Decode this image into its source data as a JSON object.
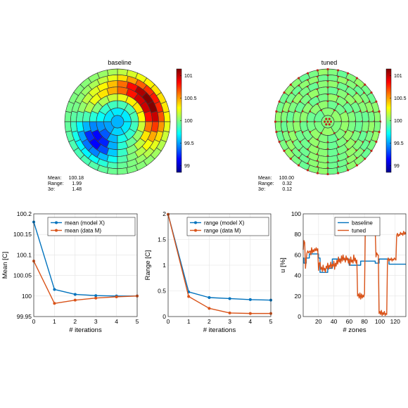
{
  "chart_data": [
    {
      "type": "heatmap",
      "title": "baseline",
      "colorbar": {
        "ticks": [
          "101",
          "100.5",
          "100",
          "99.5",
          "99"
        ],
        "min": 98.85,
        "max": 101.15
      },
      "stats": [
        {
          "label": "Mean:",
          "value": "100.18"
        },
        {
          "label": "Range:",
          "value": "1.99"
        },
        {
          "label": "3σ:",
          "value": "1.48"
        }
      ],
      "field": {
        "base": 100.0,
        "hot_angle_deg": 30,
        "hot_amplitude": 1.0,
        "cold_angle_deg": 220,
        "cold_amplitude": 0.9
      }
    },
    {
      "type": "heatmap",
      "title": "tuned",
      "colorbar": {
        "ticks": [
          "101",
          "100.5",
          "100",
          "99.5",
          "99"
        ],
        "min": 98.85,
        "max": 101.15
      },
      "stats": [
        {
          "label": "Mean:",
          "value": "100.00"
        },
        {
          "label": "Range:",
          "value": "0.32"
        },
        {
          "label": "3σ:",
          "value": "0.12"
        }
      ],
      "field": {
        "base": 100.0
      }
    },
    {
      "type": "line",
      "xlabel": "# iterations",
      "ylabel": "Mean [C]",
      "xlim": [
        0,
        5
      ],
      "ylim": [
        99.95,
        100.2
      ],
      "xticks": [
        0,
        1,
        2,
        3,
        4,
        5
      ],
      "yticks": [
        99.95,
        100,
        100.05,
        100.1,
        100.15,
        100.2
      ],
      "ytick_labels": [
        "99.95",
        "100",
        "100.05",
        "100.1",
        "100.15",
        "100.2"
      ],
      "grid": true,
      "legend": "top-right",
      "x": [
        0,
        1,
        2,
        3,
        4,
        5
      ],
      "series": [
        {
          "name": "mean (model X)",
          "color": "#0072bd",
          "values": [
            100.18,
            100.016,
            100.004,
            100.001,
            100.0,
            100.0
          ]
        },
        {
          "name": "mean (data M)",
          "color": "#d95319",
          "values": [
            100.085,
            99.982,
            99.99,
            99.995,
            99.998,
            100.0
          ]
        }
      ]
    },
    {
      "type": "line",
      "xlabel": "# iterations",
      "ylabel": "Range [C]",
      "xlim": [
        0,
        5
      ],
      "ylim": [
        0,
        2
      ],
      "xticks": [
        0,
        1,
        2,
        3,
        4,
        5
      ],
      "yticks": [
        0,
        0.5,
        1,
        1.5,
        2
      ],
      "ytick_labels": [
        "0",
        "0.5",
        "1",
        "1.5",
        "2"
      ],
      "grid": true,
      "legend": "top-right",
      "x": [
        0,
        1,
        2,
        3,
        4,
        5
      ],
      "series": [
        {
          "name": "range (model X)",
          "color": "#0072bd",
          "values": [
            1.99,
            0.48,
            0.37,
            0.35,
            0.33,
            0.32
          ]
        },
        {
          "name": "range (data M)",
          "color": "#d95319",
          "values": [
            1.99,
            0.39,
            0.16,
            0.07,
            0.06,
            0.06
          ]
        }
      ]
    },
    {
      "type": "line",
      "xlabel": "# zones",
      "ylabel": "u [%]",
      "xlim": [
        0,
        134
      ],
      "ylim": [
        0,
        100
      ],
      "xticks": [
        20,
        40,
        60,
        80,
        100,
        120
      ],
      "yticks": [
        0,
        20,
        40,
        60,
        80,
        100
      ],
      "ytick_labels": [
        "0",
        "20",
        "40",
        "60",
        "80",
        "100"
      ],
      "grid": true,
      "legend": "top-right",
      "series": [
        {
          "name": "baseline",
          "color": "#0072bd",
          "points": [
            [
              0,
              57
            ],
            [
              1,
              57
            ],
            [
              1,
              52
            ],
            [
              4,
              52
            ],
            [
              4,
              57
            ],
            [
              8,
              57
            ],
            [
              8,
              61
            ],
            [
              20,
              61
            ],
            [
              20,
              57
            ],
            [
              22,
              57
            ],
            [
              22,
              43
            ],
            [
              32,
              43
            ],
            [
              32,
              47
            ],
            [
              38,
              47
            ],
            [
              38,
              56
            ],
            [
              60,
              56
            ],
            [
              60,
              50
            ],
            [
              75,
              50
            ],
            [
              75,
              54
            ],
            [
              94,
              54
            ],
            [
              94,
              52
            ],
            [
              99,
              52
            ],
            [
              99,
              56
            ],
            [
              112,
              56
            ],
            [
              112,
              51
            ],
            [
              134,
              51
            ]
          ]
        },
        {
          "name": "tuned",
          "color": "#d95319",
          "points": [
            [
              0,
              65
            ],
            [
              1,
              74
            ],
            [
              2,
              72
            ],
            [
              3,
              47
            ],
            [
              4,
              56
            ],
            [
              5,
              62
            ],
            [
              6,
              64
            ],
            [
              7,
              62
            ],
            [
              8,
              63
            ],
            [
              9,
              64
            ],
            [
              10,
              60
            ],
            [
              11,
              67
            ],
            [
              12,
              62
            ],
            [
              13,
              65
            ],
            [
              14,
              63
            ],
            [
              15,
              66
            ],
            [
              16,
              64
            ],
            [
              17,
              67
            ],
            [
              18,
              64
            ],
            [
              19,
              66
            ],
            [
              20,
              45
            ],
            [
              21,
              52
            ],
            [
              22,
              53
            ],
            [
              23,
              46
            ],
            [
              24,
              48
            ],
            [
              25,
              44
            ],
            [
              26,
              50
            ],
            [
              27,
              45
            ],
            [
              28,
              47
            ],
            [
              29,
              43
            ],
            [
              30,
              49
            ],
            [
              31,
              47
            ],
            [
              32,
              52
            ],
            [
              33,
              46
            ],
            [
              34,
              50
            ],
            [
              35,
              48
            ],
            [
              36,
              53
            ],
            [
              37,
              47
            ],
            [
              38,
              51
            ],
            [
              39,
              49
            ],
            [
              40,
              54
            ],
            [
              41,
              46
            ],
            [
              42,
              52
            ],
            [
              43,
              49
            ],
            [
              44,
              55
            ],
            [
              45,
              51
            ],
            [
              46,
              58
            ],
            [
              47,
              53
            ],
            [
              48,
              56
            ],
            [
              49,
              52
            ],
            [
              50,
              59
            ],
            [
              51,
              54
            ],
            [
              52,
              60
            ],
            [
              53,
              55
            ],
            [
              54,
              57
            ],
            [
              55,
              53
            ],
            [
              56,
              59
            ],
            [
              57,
              55
            ],
            [
              58,
              57
            ],
            [
              59,
              52
            ],
            [
              60,
              56
            ],
            [
              61,
              50
            ],
            [
              62,
              58
            ],
            [
              63,
              53
            ],
            [
              64,
              55
            ],
            [
              65,
              52
            ],
            [
              66,
              60
            ],
            [
              67,
              54
            ],
            [
              68,
              57
            ],
            [
              69,
              52
            ],
            [
              70,
              55
            ],
            [
              71,
              20
            ],
            [
              72,
              22
            ],
            [
              73,
              18
            ],
            [
              74,
              23
            ],
            [
              75,
              17
            ],
            [
              76,
              22
            ],
            [
              77,
              18
            ],
            [
              78,
              21
            ],
            [
              79,
              19
            ],
            [
              80,
              22
            ],
            [
              81,
              82
            ],
            [
              82,
              84
            ],
            [
              83,
              82
            ],
            [
              84,
              83
            ],
            [
              85,
              82
            ],
            [
              86,
              84
            ],
            [
              87,
              82
            ],
            [
              88,
              84
            ],
            [
              89,
              82
            ],
            [
              90,
              84
            ],
            [
              91,
              83
            ],
            [
              92,
              84
            ],
            [
              93,
              82
            ],
            [
              94,
              83
            ],
            [
              95,
              58
            ],
            [
              96,
              62
            ],
            [
              97,
              60
            ],
            [
              98,
              60
            ],
            [
              99,
              3
            ],
            [
              100,
              5
            ],
            [
              101,
              2
            ],
            [
              102,
              6
            ],
            [
              103,
              1
            ],
            [
              104,
              4
            ],
            [
              105,
              2
            ],
            [
              106,
              5
            ],
            [
              107,
              1
            ],
            [
              108,
              3
            ],
            [
              109,
              2
            ],
            [
              110,
              55
            ],
            [
              111,
              57
            ],
            [
              112,
              54
            ],
            [
              113,
              56
            ],
            [
              114,
              55
            ],
            [
              115,
              57
            ],
            [
              116,
              54
            ],
            [
              117,
              56
            ],
            [
              118,
              55
            ],
            [
              119,
              57
            ],
            [
              120,
              56
            ],
            [
              121,
              55
            ],
            [
              122,
              79
            ],
            [
              123,
              81
            ],
            [
              124,
              78
            ],
            [
              125,
              80
            ],
            [
              126,
              79
            ],
            [
              127,
              82
            ],
            [
              128,
              80
            ],
            [
              129,
              81
            ],
            [
              130,
              79
            ],
            [
              131,
              83
            ],
            [
              132,
              80
            ],
            [
              133,
              82
            ],
            [
              134,
              80
            ]
          ]
        }
      ]
    }
  ]
}
